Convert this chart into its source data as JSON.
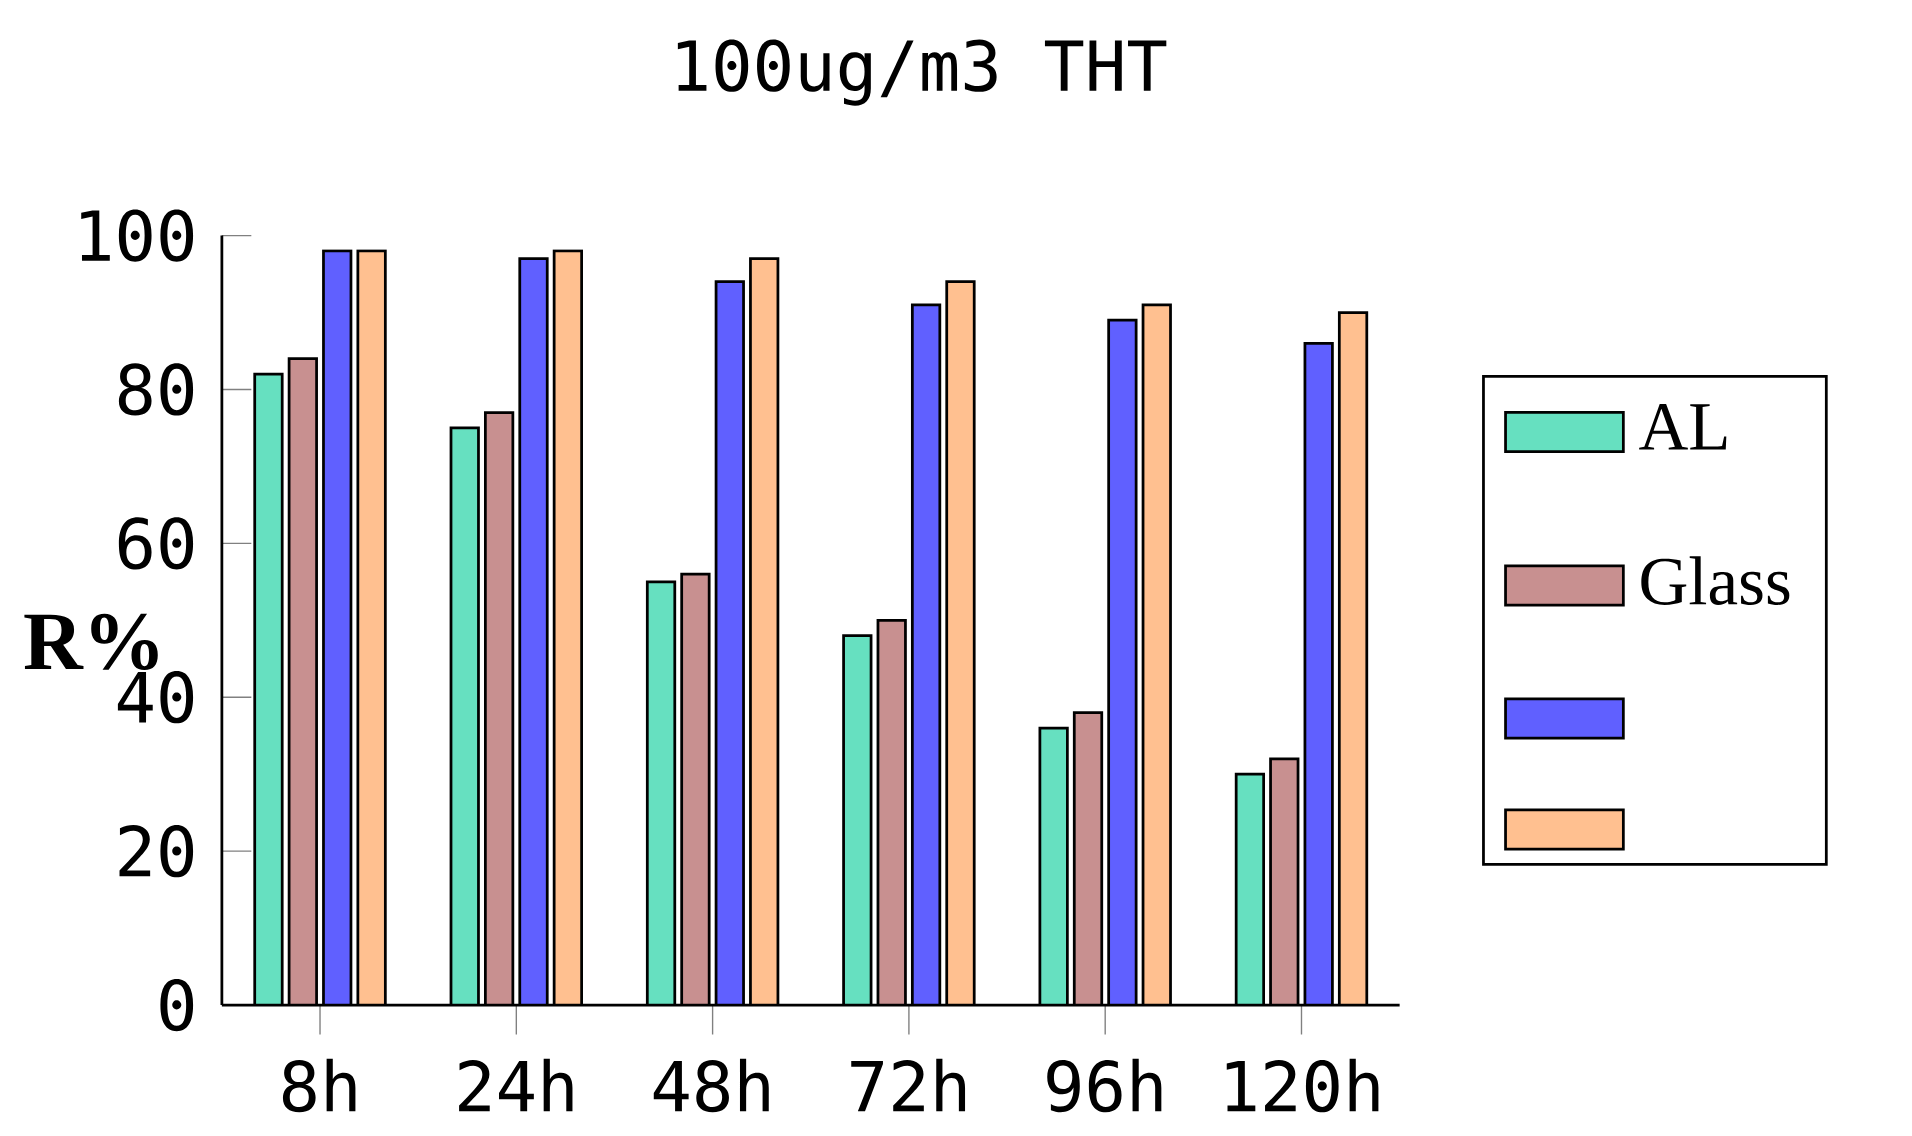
{
  "chart_data": {
    "type": "bar",
    "title": "100ug/m3 THT",
    "ylabel": "R%",
    "categories": [
      "8h",
      "24h",
      "48h",
      "72h",
      "96h",
      "120h"
    ],
    "series": [
      {
        "name": "AL",
        "color": "#66e0c0",
        "values": [
          82,
          75,
          55,
          48,
          36,
          30
        ]
      },
      {
        "name": "Glass",
        "color": "#c89090",
        "values": [
          84,
          77,
          56,
          50,
          38,
          32
        ]
      },
      {
        "color": "#6060ff",
        "values": [
          98,
          97,
          94,
          91,
          89,
          86
        ]
      },
      {
        "color": "#ffc090",
        "values": [
          98,
          98,
          97,
          94,
          91,
          90
        ]
      }
    ],
    "ylim": [
      0,
      100
    ],
    "yticks": [
      0,
      20,
      40,
      60,
      80,
      100
    ],
    "legend": "right"
  }
}
